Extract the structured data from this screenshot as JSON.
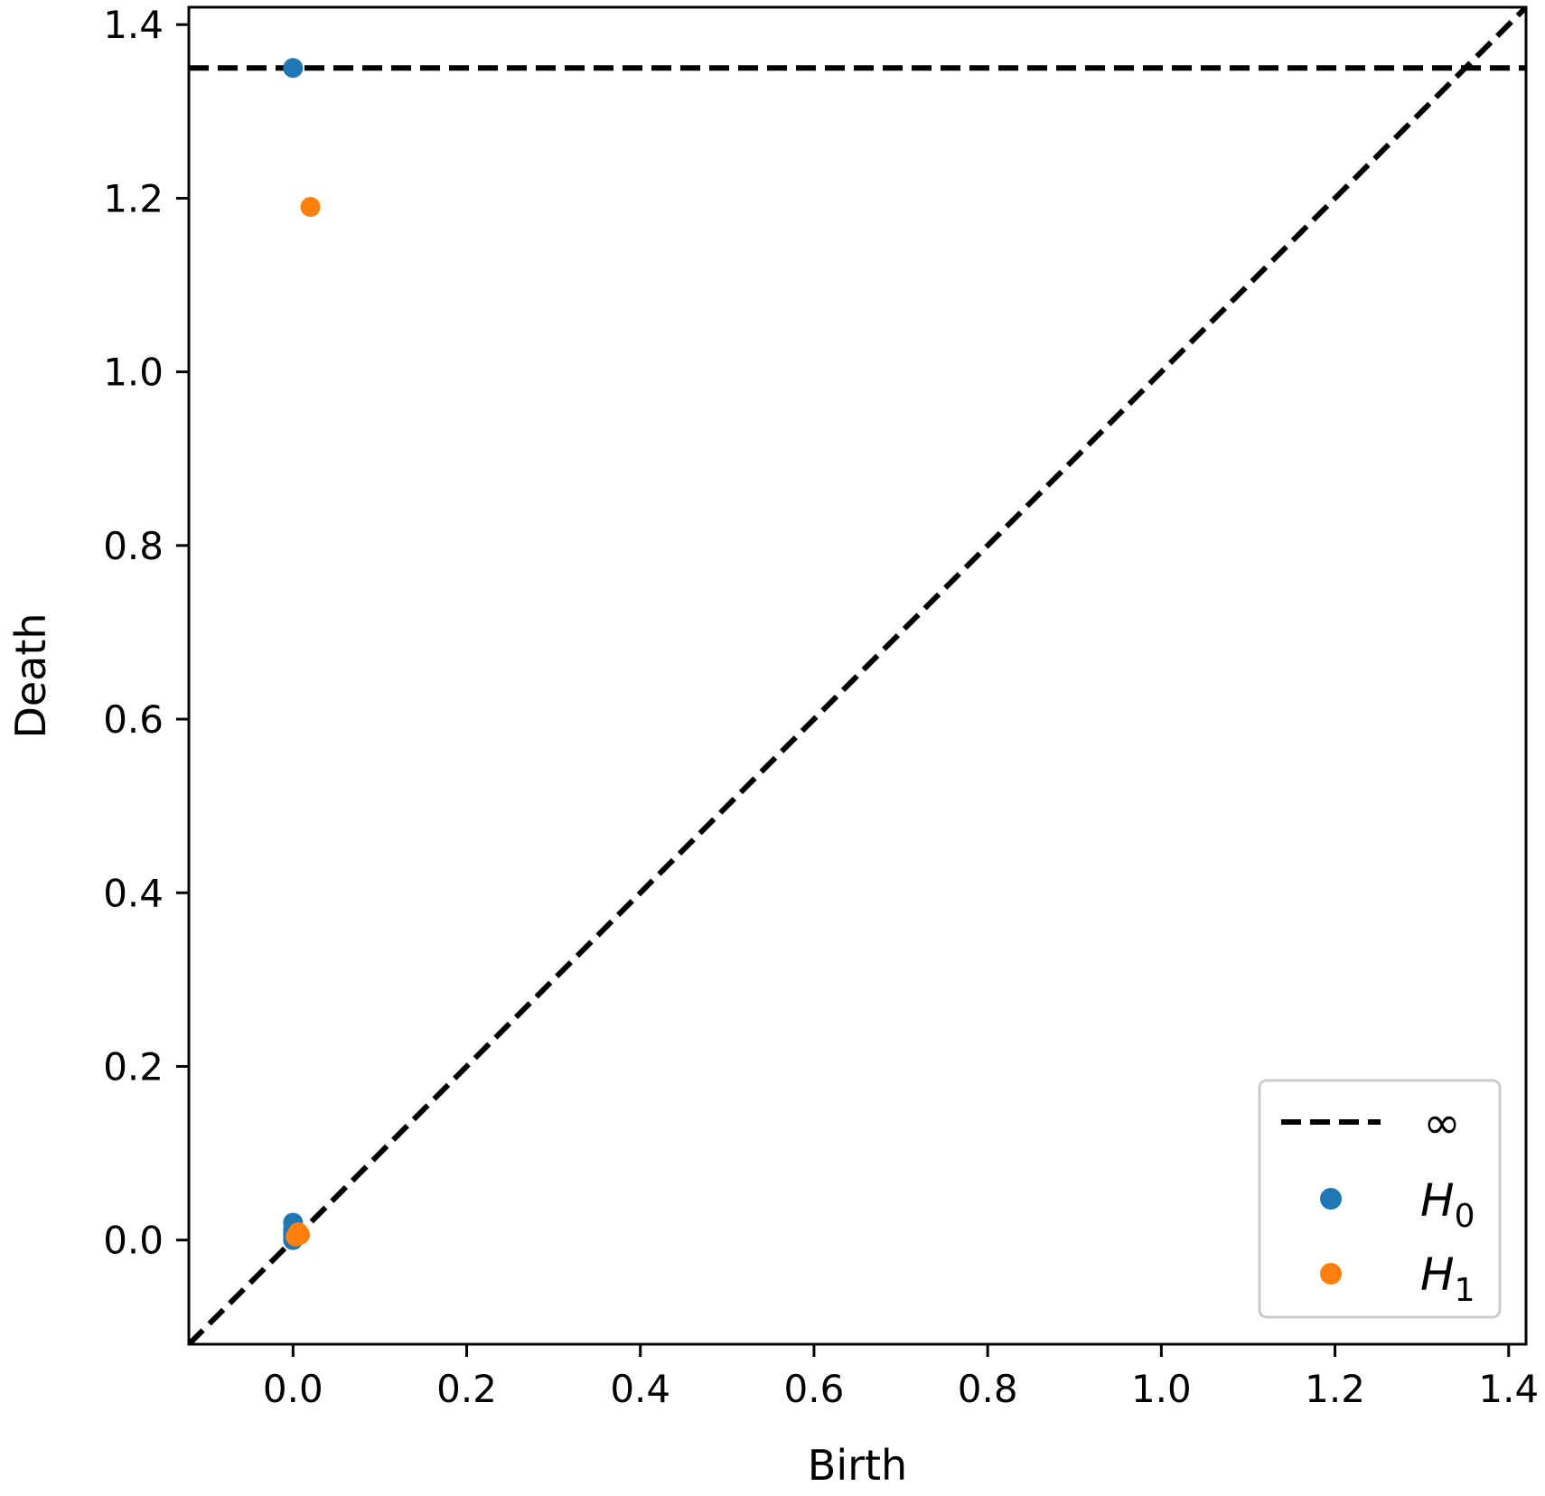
{
  "chart_data": {
    "type": "scatter",
    "xlabel": "Birth",
    "ylabel": "Death",
    "xlim": [
      -0.12,
      1.42
    ],
    "ylim": [
      -0.12,
      1.42
    ],
    "xticks": [
      "0.0",
      "0.2",
      "0.4",
      "0.6",
      "0.8",
      "1.0",
      "1.2",
      "1.4"
    ],
    "yticks": [
      "0.0",
      "0.2",
      "0.4",
      "0.6",
      "0.8",
      "1.0",
      "1.2",
      "1.4"
    ],
    "grid": false,
    "legend_position": "bottom-right",
    "infinity_line": {
      "label": "∞",
      "y": 1.35,
      "style": "dashed",
      "color": "#000000"
    },
    "diagonal": {
      "style": "dashed",
      "color": "#000000"
    },
    "series": [
      {
        "name": "H",
        "subscript": "0",
        "color": "#1f77b4",
        "points": [
          {
            "x": 0.0,
            "y": 1.35
          },
          {
            "x": 0.0,
            "y": 0.02
          },
          {
            "x": 0.0,
            "y": 0.012
          },
          {
            "x": 0.0,
            "y": 0.006
          },
          {
            "x": 0.0,
            "y": 0.0
          }
        ]
      },
      {
        "name": "H",
        "subscript": "1",
        "color": "#ff7f0e",
        "points": [
          {
            "x": 0.02,
            "y": 1.19
          },
          {
            "x": 0.006,
            "y": 0.009
          },
          {
            "x": 0.003,
            "y": 0.004
          },
          {
            "x": 0.008,
            "y": 0.006
          }
        ]
      }
    ]
  }
}
